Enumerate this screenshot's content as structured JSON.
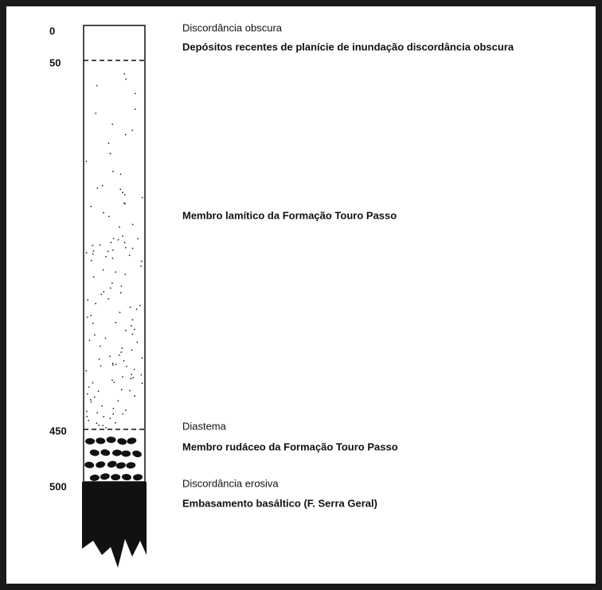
{
  "depth_labels": [
    "0",
    "50",
    "450",
    "500"
  ],
  "annotations": [
    "Discordância obscura",
    "Depósitos recentes de planície de inundação discordância obscura",
    "Membro lamítico da Formação Touro Passo",
    "Diastema",
    "Membro rudáceo da Formação Touro Passo",
    "Discordância erosiva",
    "Embasamento basáltico (F. Serra Geral)"
  ]
}
